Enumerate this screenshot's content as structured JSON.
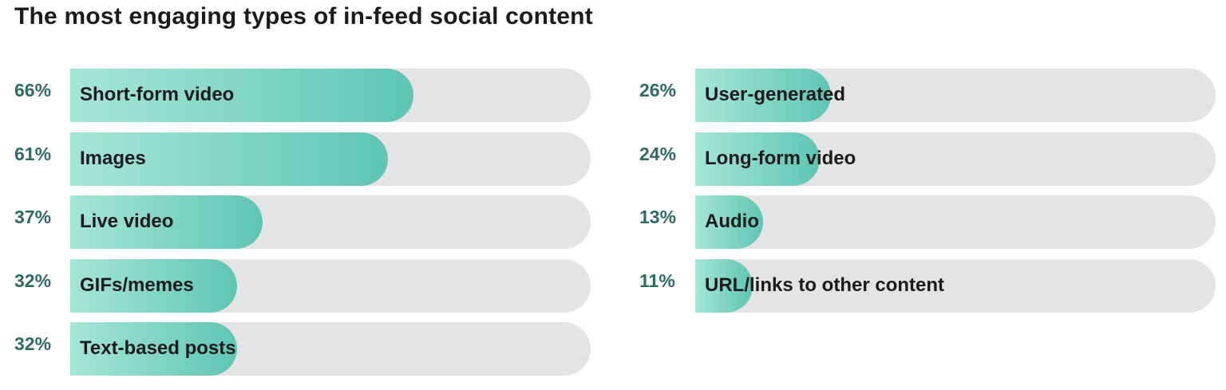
{
  "chart_data": {
    "type": "bar",
    "title": "The most engaging types of in-feed social content",
    "xlim": [
      0,
      100
    ],
    "colors": {
      "fill_start": "#a6e6d6",
      "fill_end": "#5ec6b3",
      "track": "#e4e4e4",
      "percent_text": "#2e6b62"
    },
    "columns": [
      {
        "items": [
          {
            "label": "Short-form video",
            "value": 66,
            "display": "66%"
          },
          {
            "label": "Images",
            "value": 61,
            "display": "61%"
          },
          {
            "label": "Live video",
            "value": 37,
            "display": "37%"
          },
          {
            "label": "GIFs/memes",
            "value": 32,
            "display": "32%"
          },
          {
            "label": "Text-based posts",
            "value": 32,
            "display": "32%"
          }
        ]
      },
      {
        "items": [
          {
            "label": "User-generated",
            "value": 26,
            "display": "26%"
          },
          {
            "label": "Long-form video",
            "value": 24,
            "display": "24%"
          },
          {
            "label": "Audio",
            "value": 13,
            "display": "13%"
          },
          {
            "label": "URL/links to other content",
            "value": 11,
            "display": "11%"
          }
        ]
      }
    ]
  }
}
